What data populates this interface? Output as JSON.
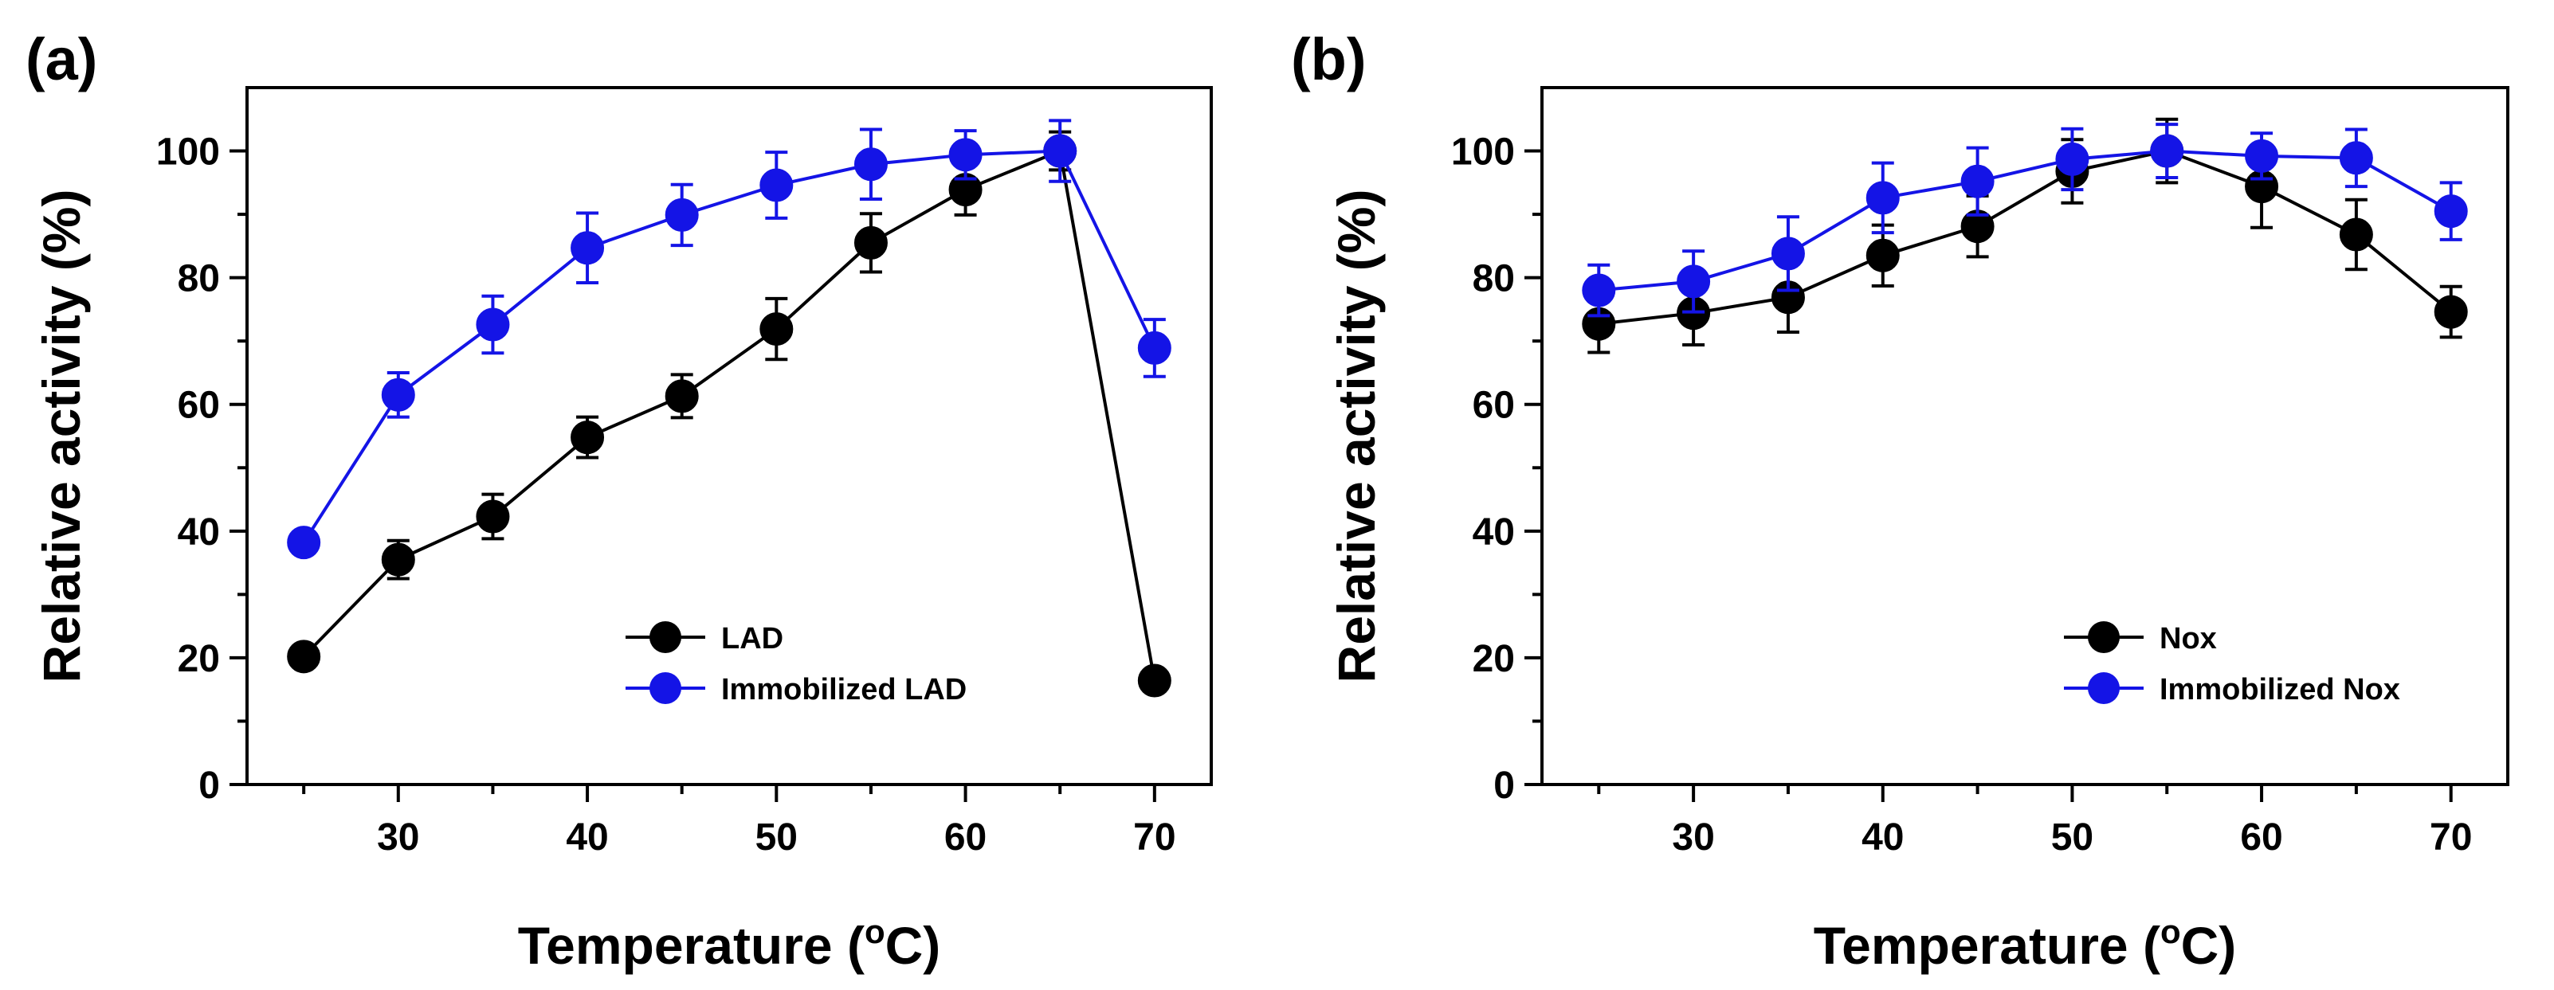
{
  "chart_data": [
    {
      "type": "line",
      "panel_label": "(a)",
      "xlabel": "Temperature (",
      "xlabel_sup": "o",
      "xlabel_unit": "C)",
      "ylabel": "Relative activity (%)",
      "xlim": [
        22,
        73
      ],
      "ylim": [
        0,
        110
      ],
      "xticks_major": [
        30,
        40,
        50,
        60,
        70
      ],
      "xticks_minor": [
        25,
        35,
        45,
        55,
        65
      ],
      "yticks_major": [
        0,
        20,
        40,
        60,
        80,
        100
      ],
      "yticks_minor": [
        10,
        30,
        50,
        70,
        90
      ],
      "legend_position": "lower-right",
      "x": [
        25,
        30,
        35,
        40,
        45,
        50,
        55,
        60,
        65,
        70
      ],
      "series": [
        {
          "name": "LAD",
          "color": "#000000",
          "values": [
            20.2,
            35.5,
            42.3,
            54.8,
            61.3,
            71.9,
            85.5,
            93.9,
            100,
            16.4
          ],
          "errors": [
            1.0,
            3.0,
            3.5,
            3.2,
            3.4,
            4.8,
            4.6,
            4.0,
            3.0,
            1.0
          ]
        },
        {
          "name": "Immobilized LAD",
          "color": "#1414e6",
          "values": [
            38.2,
            61.5,
            72.6,
            84.7,
            89.9,
            94.6,
            97.9,
            99.4,
            100,
            68.9
          ],
          "errors": [
            1.2,
            3.5,
            4.5,
            5.5,
            4.8,
            5.2,
            5.5,
            3.8,
            4.8,
            4.5
          ]
        }
      ]
    },
    {
      "type": "line",
      "panel_label": "(b)",
      "xlabel": "Temperature (",
      "xlabel_sup": "o",
      "xlabel_unit": "C)",
      "ylabel": "Relative activity (%)",
      "xlim": [
        22,
        73
      ],
      "ylim": [
        0,
        110
      ],
      "xticks_major": [
        30,
        40,
        50,
        60,
        70
      ],
      "xticks_minor": [
        25,
        35,
        45,
        55,
        65
      ],
      "yticks_major": [
        0,
        20,
        40,
        60,
        80,
        100
      ],
      "yticks_minor": [
        10,
        30,
        50,
        70,
        90
      ],
      "legend_position": "lower-right",
      "x": [
        25,
        30,
        35,
        40,
        45,
        50,
        55,
        60,
        65,
        70
      ],
      "series": [
        {
          "name": "Nox",
          "color": "#000000",
          "values": [
            72.7,
            74.4,
            76.9,
            83.5,
            88.1,
            96.8,
            100,
            94.4,
            86.8,
            74.6
          ],
          "errors": [
            4.5,
            5.0,
            5.5,
            4.8,
            4.8,
            5.0,
            5.0,
            6.5,
            5.5,
            4.0
          ]
        },
        {
          "name": "Immobilized Nox",
          "color": "#1414e6",
          "values": [
            78.0,
            79.4,
            83.8,
            92.6,
            95.2,
            98.7,
            100,
            99.2,
            98.9,
            90.5
          ],
          "errors": [
            4.0,
            4.8,
            5.8,
            5.5,
            5.3,
            4.8,
            4.2,
            3.6,
            4.5,
            4.5
          ]
        }
      ]
    }
  ]
}
